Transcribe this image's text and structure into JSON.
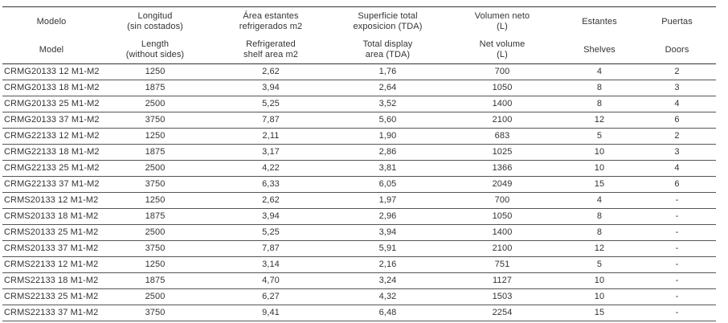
{
  "header_es": [
    "Modelo",
    "Longitud\n(sin costados)",
    "Área estantes\nrefrigerados m2",
    "Superficie total\nexposicion (TDA)",
    "Volumen neto\n(L)",
    "Estantes",
    "Puertas"
  ],
  "header_en": [
    "Model",
    "Length\n(without sides)",
    "Refrigerated\nshelf area m2",
    "Total display\narea (TDA)",
    "Net volume\n(L)",
    "Shelves",
    "Doors"
  ],
  "rows": [
    [
      "CRMG20133 12 M1-M2",
      "1250",
      "2,62",
      "1,76",
      "700",
      "4",
      "2"
    ],
    [
      "CRMG20133 18 M1-M2",
      "1875",
      "3,94",
      "2,64",
      "1050",
      "8",
      "3"
    ],
    [
      "CRMG20133 25 M1-M2",
      "2500",
      "5,25",
      "3,52",
      "1400",
      "8",
      "4"
    ],
    [
      "CRMG20133 37 M1-M2",
      "3750",
      "7,87",
      "5,60",
      "2100",
      "12",
      "6"
    ],
    [
      "CRMG22133 12 M1-M2",
      "1250",
      "2,11",
      "1,90",
      "683",
      "5",
      "2"
    ],
    [
      "CRMG22133 18 M1-M2",
      "1875",
      "3,17",
      "2,86",
      "1025",
      "10",
      "3"
    ],
    [
      "CRMG22133 25 M1-M2",
      "2500",
      "4,22",
      "3,81",
      "1366",
      "10",
      "4"
    ],
    [
      "CRMG22133 37 M1-M2",
      "3750",
      "6,33",
      "6,05",
      "2049",
      "15",
      "6"
    ],
    [
      "CRMS20133 12 M1-M2",
      "1250",
      "2,62",
      "1,97",
      "700",
      "4",
      "-"
    ],
    [
      "CRMS20133 18 M1-M2",
      "1875",
      "3,94",
      "2,96",
      "1050",
      "8",
      "-"
    ],
    [
      "CRMS20133 25 M1-M2",
      "2500",
      "5,25",
      "3,94",
      "1400",
      "8",
      "-"
    ],
    [
      "CRMS20133 37 M1-M2",
      "3750",
      "7,87",
      "5,91",
      "2100",
      "12",
      "-"
    ],
    [
      "CRMS22133 12 M1-M2",
      "1250",
      "3,14",
      "2,16",
      "751",
      "5",
      "-"
    ],
    [
      "CRMS22133 18 M1-M2",
      "1875",
      "4,70",
      "3,24",
      "1127",
      "10",
      "-"
    ],
    [
      "CRMS22133 25 M1-M2",
      "2500",
      "6,27",
      "4,32",
      "1503",
      "10",
      "-"
    ],
    [
      "CRMS22133 37 M1-M2",
      "3750",
      "9,41",
      "6,48",
      "2254",
      "15",
      "-"
    ]
  ]
}
